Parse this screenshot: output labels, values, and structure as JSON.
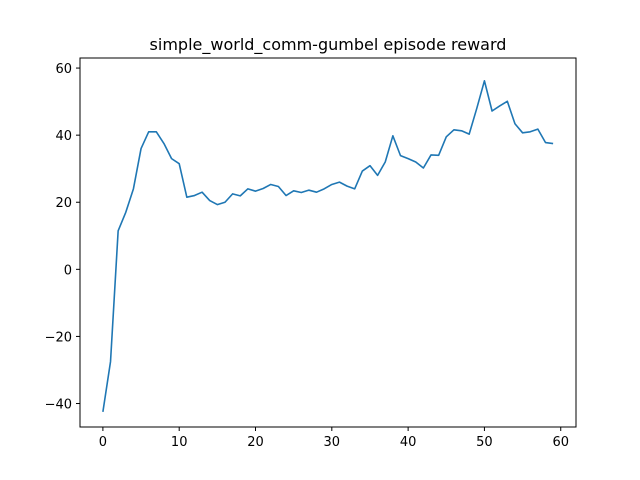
{
  "chart_data": {
    "type": "line",
    "title": "simple_world_comm-gumbel episode reward",
    "xlabel": "",
    "ylabel": "",
    "xlim": [
      -3,
      62
    ],
    "ylim": [
      -47,
      63
    ],
    "xticks": [
      0,
      10,
      20,
      30,
      40,
      50,
      60
    ],
    "yticks": [
      -40,
      -20,
      0,
      20,
      40,
      60
    ],
    "x_tick_labels": [
      "0",
      "10",
      "20",
      "30",
      "40",
      "50",
      "60"
    ],
    "y_tick_labels": [
      "−40",
      "−20",
      "0",
      "20",
      "40",
      "60"
    ],
    "grid": false,
    "series": [
      {
        "color": "#1f77b4",
        "x": [
          0,
          1,
          2,
          3,
          4,
          5,
          6,
          7,
          8,
          9,
          10,
          11,
          12,
          13,
          14,
          15,
          16,
          17,
          18,
          19,
          20,
          21,
          22,
          23,
          24,
          25,
          26,
          27,
          28,
          29,
          30,
          31,
          32,
          33,
          34,
          35,
          36,
          37,
          38,
          39,
          40,
          41,
          42,
          43,
          44,
          45,
          46,
          47,
          48,
          49,
          50,
          51,
          52,
          53,
          54,
          55,
          56,
          57,
          58,
          59
        ],
        "values": [
          -42.5,
          -27.5,
          11.5,
          17,
          24,
          36,
          41,
          41,
          37.5,
          33,
          31.5,
          21.5,
          22,
          23,
          20.5,
          19.3,
          20,
          22.5,
          21.9,
          24,
          23.3,
          24.1,
          25.3,
          24.7,
          22,
          23.4,
          22.9,
          23.6,
          23,
          24,
          25.3,
          26,
          24.8,
          24,
          29.3,
          30.9,
          28,
          32,
          39.8,
          33.9,
          33,
          32,
          30.2,
          34.1,
          34,
          39.5,
          41.6,
          41.3,
          40.3,
          48,
          56.2,
          47.2,
          48.7,
          50.1,
          43.4,
          40.7,
          41,
          41.8,
          37.8,
          37.5
        ]
      }
    ]
  }
}
